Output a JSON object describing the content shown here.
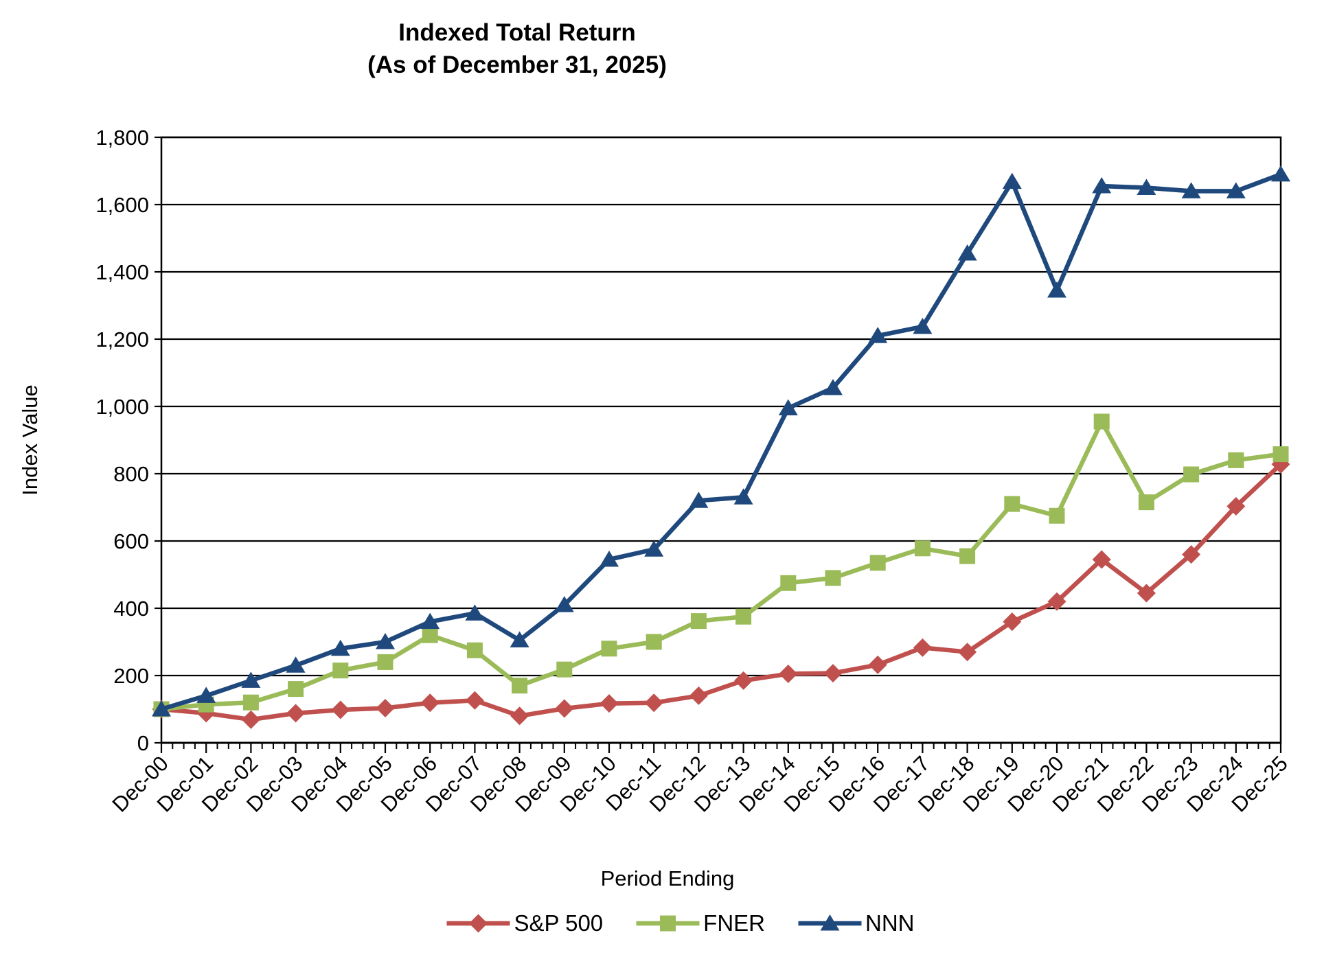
{
  "page": {
    "background": "#ffffff"
  },
  "chart_data": {
    "type": "line",
    "title": "Indexed Total Return",
    "subtitle": "(As of December 31, 2025)",
    "xlabel": "Period Ending",
    "ylabel": "Index Value",
    "ylim": [
      0,
      1800
    ],
    "ytick_step": 200,
    "ytick_labels": [
      "0",
      "200",
      "400",
      "600",
      "800",
      "1,000",
      "1,200",
      "1,400",
      "1,600",
      "1,800"
    ],
    "grid": "horizontal solid black",
    "legend_position": "bottom-center",
    "x_tick_minor_per_interval": 3,
    "categories": [
      "Dec-00",
      "Dec-01",
      "Dec-02",
      "Dec-03",
      "Dec-04",
      "Dec-05",
      "Dec-06",
      "Dec-07",
      "Dec-08",
      "Dec-09",
      "Dec-10",
      "Dec-11",
      "Dec-12",
      "Dec-13",
      "Dec-14",
      "Dec-15",
      "Dec-16",
      "Dec-17",
      "Dec-18",
      "Dec-19",
      "Dec-20",
      "Dec-21",
      "Dec-22",
      "Dec-23",
      "Dec-24",
      "Dec-25"
    ],
    "series": [
      {
        "name": "S&P 500",
        "color": "#C0504D",
        "marker": "diamond",
        "values": [
          100,
          88,
          69,
          88,
          98,
          103,
          119,
          126,
          80,
          102,
          117,
          119,
          140,
          185,
          205,
          207,
          232,
          283,
          270,
          360,
          420,
          545,
          445,
          560,
          703,
          828
        ]
      },
      {
        "name": "FNER",
        "color": "#9BBB59",
        "marker": "square",
        "values": [
          100,
          114,
          120,
          160,
          215,
          240,
          320,
          275,
          170,
          218,
          280,
          300,
          362,
          375,
          475,
          490,
          535,
          578,
          555,
          710,
          675,
          955,
          715,
          798,
          840,
          858
        ]
      },
      {
        "name": "NNN",
        "color": "#1F497D",
        "marker": "triangle",
        "values": [
          100,
          140,
          185,
          230,
          280,
          300,
          360,
          385,
          305,
          410,
          545,
          575,
          720,
          730,
          995,
          1055,
          1210,
          1237,
          1455,
          1668,
          1345,
          1655,
          1650,
          1640,
          1640,
          1690
        ]
      }
    ]
  }
}
